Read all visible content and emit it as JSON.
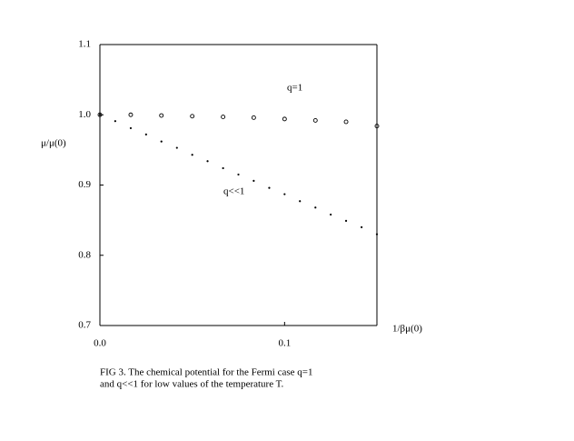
{
  "chart_data": {
    "type": "scatter",
    "xlabel": "1/βμ(0)",
    "ylabel": "μ/μ(0)",
    "caption": [
      "FIG 3.  The chemical potential for the Fermi case q=1",
      "and q<<1 for low values of the temperature T."
    ],
    "xlim": [
      0,
      0.15
    ],
    "ylim": [
      0.7,
      1.1
    ],
    "xticks": [
      {
        "value": 0,
        "label": "0.0"
      },
      {
        "value": 0.1,
        "label": "0.1"
      }
    ],
    "yticks": [
      {
        "value": 0.7,
        "label": "0.7"
      },
      {
        "value": 0.8,
        "label": "0.8"
      },
      {
        "value": 0.9,
        "label": "0.9"
      },
      {
        "value": 1.0,
        "label": "1.0"
      },
      {
        "value": 1.1,
        "label": "1.1"
      }
    ],
    "grid": false,
    "series": [
      {
        "name": "q=1",
        "color": "#000000",
        "marker": "open-circle",
        "x": [
          0,
          0.0167,
          0.0333,
          0.05,
          0.0667,
          0.0833,
          0.1,
          0.1167,
          0.1333,
          0.15
        ],
        "values": [
          1.0,
          1.0,
          0.999,
          0.998,
          0.997,
          0.996,
          0.994,
          0.992,
          0.99,
          0.984
        ]
      },
      {
        "name": "q<<1",
        "color": "#000000",
        "marker": "dot",
        "x": [
          0,
          0.0083,
          0.0167,
          0.025,
          0.0333,
          0.0417,
          0.05,
          0.0583,
          0.0667,
          0.075,
          0.0833,
          0.0917,
          0.1,
          0.1083,
          0.1167,
          0.125,
          0.1333,
          0.1417,
          0.15
        ],
        "values": [
          1.0,
          0.991,
          0.981,
          0.972,
          0.962,
          0.953,
          0.943,
          0.934,
          0.924,
          0.915,
          0.906,
          0.896,
          0.887,
          0.877,
          0.868,
          0.858,
          0.849,
          0.84,
          0.83
        ]
      }
    ]
  }
}
